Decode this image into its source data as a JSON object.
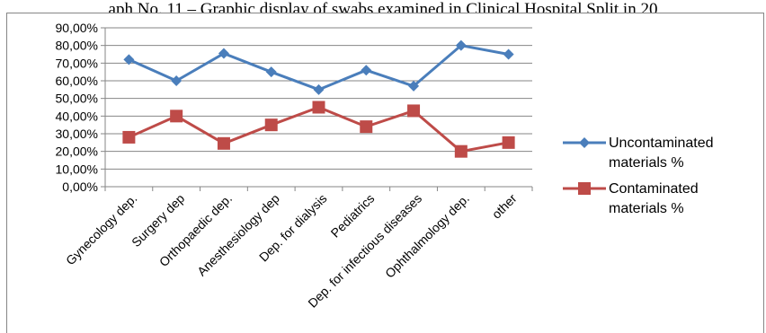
{
  "caption": "aph No. 11 – Graphic display of swabs examined in Clinical Hospital Split in 20",
  "chart_data": {
    "type": "line",
    "categories": [
      "Gynecology dep.",
      "Surgery dep",
      "Orthopaedic dep.",
      "Anesthesiology dep",
      "Dep. for dialysis",
      "Pediatrics",
      "Dep. for infectious diseases",
      "Ophthalmology dep.",
      "other"
    ],
    "series": [
      {
        "name": "Uncontaminated materials %",
        "color": "#4a7ebb",
        "marker": "diamond",
        "values": [
          72,
          60,
          75.5,
          65,
          55,
          66,
          57,
          80,
          75
        ]
      },
      {
        "name": "Contaminated materials %",
        "color": "#be4b48",
        "marker": "square",
        "values": [
          28,
          40,
          24.5,
          35,
          45,
          34,
          43,
          20,
          25
        ]
      }
    ],
    "yticks": [
      "0,00%",
      "10,00%",
      "20,00%",
      "30,00%",
      "40,00%",
      "50,00%",
      "60,00%",
      "70,00%",
      "80,00%",
      "90,00%"
    ],
    "ylim": [
      0,
      90
    ],
    "grid": true,
    "legend": "right"
  }
}
